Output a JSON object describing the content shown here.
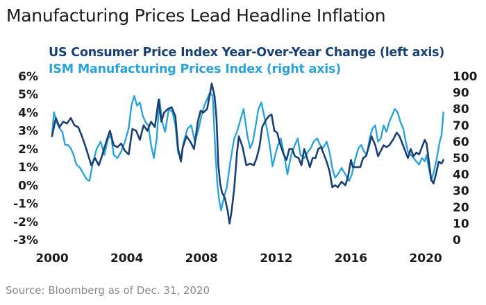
{
  "title": "Manufacturing Prices Lead Headline Inflation",
  "source": "Source: Bloomberg as of Dec. 31, 2020",
  "chart_data": {
    "type": "line",
    "title": "Manufacturing Prices Lead Headline Inflation",
    "grid": false,
    "xlim": [
      2000,
      2021
    ],
    "x_ticks": [
      "2000",
      "2004",
      "2008",
      "2012",
      "2016",
      "2020"
    ],
    "left_axis": {
      "ylim": [
        -3,
        6
      ],
      "ticks": [
        "6%",
        "5%",
        "4%",
        "3%",
        "2%",
        "1%",
        "0%",
        "-1%",
        "-2%",
        "-3%"
      ]
    },
    "right_axis": {
      "ylim": [
        0,
        100
      ],
      "ticks": [
        "100",
        "90",
        "80",
        "70",
        "60",
        "50",
        "40",
        "30",
        "20",
        "10",
        "0"
      ]
    },
    "series": [
      {
        "name": "US Consumer Price Index Year-Over-Year Change (left axis)",
        "axis": "left",
        "color": "#1a3f73",
        "points": [
          [
            2000.0,
            2.7
          ],
          [
            2000.2,
            3.7
          ],
          [
            2000.4,
            3.2
          ],
          [
            2000.6,
            3.5
          ],
          [
            2000.8,
            3.4
          ],
          [
            2001.0,
            3.7
          ],
          [
            2001.2,
            3.3
          ],
          [
            2001.4,
            3.2
          ],
          [
            2001.6,
            2.7
          ],
          [
            2001.8,
            2.1
          ],
          [
            2001.95,
            1.6
          ],
          [
            2002.1,
            1.1
          ],
          [
            2002.3,
            1.5
          ],
          [
            2002.5,
            1.1
          ],
          [
            2002.7,
            1.7
          ],
          [
            2002.9,
            2.4
          ],
          [
            2003.1,
            3.0
          ],
          [
            2003.3,
            2.2
          ],
          [
            2003.5,
            2.1
          ],
          [
            2003.7,
            2.3
          ],
          [
            2003.9,
            1.9
          ],
          [
            2004.1,
            1.7
          ],
          [
            2004.3,
            3.1
          ],
          [
            2004.5,
            3.0
          ],
          [
            2004.7,
            2.5
          ],
          [
            2004.9,
            3.3
          ],
          [
            2005.1,
            3.0
          ],
          [
            2005.3,
            3.5
          ],
          [
            2005.5,
            3.2
          ],
          [
            2005.7,
            4.7
          ],
          [
            2005.85,
            3.5
          ],
          [
            2006.0,
            4.0
          ],
          [
            2006.2,
            4.2
          ],
          [
            2006.4,
            4.3
          ],
          [
            2006.6,
            3.8
          ],
          [
            2006.75,
            2.0
          ],
          [
            2006.9,
            1.3
          ],
          [
            2007.0,
            2.1
          ],
          [
            2007.2,
            2.7
          ],
          [
            2007.4,
            2.4
          ],
          [
            2007.6,
            2.0
          ],
          [
            2007.8,
            3.5
          ],
          [
            2007.95,
            4.1
          ],
          [
            2008.1,
            4.0
          ],
          [
            2008.3,
            4.2
          ],
          [
            2008.45,
            5.0
          ],
          [
            2008.55,
            5.6
          ],
          [
            2008.7,
            4.9
          ],
          [
            2008.8,
            3.7
          ],
          [
            2008.9,
            1.1
          ],
          [
            2009.0,
            0.1
          ],
          [
            2009.1,
            -0.4
          ],
          [
            2009.25,
            -0.7
          ],
          [
            2009.4,
            -1.4
          ],
          [
            2009.5,
            -2.1
          ],
          [
            2009.6,
            -1.5
          ],
          [
            2009.75,
            -0.2
          ],
          [
            2009.9,
            1.8
          ],
          [
            2010.0,
            2.7
          ],
          [
            2010.2,
            2.1
          ],
          [
            2010.4,
            1.1
          ],
          [
            2010.6,
            1.2
          ],
          [
            2010.8,
            1.1
          ],
          [
            2010.95,
            1.5
          ],
          [
            2011.1,
            2.1
          ],
          [
            2011.25,
            3.2
          ],
          [
            2011.45,
            3.6
          ],
          [
            2011.6,
            3.8
          ],
          [
            2011.75,
            3.9
          ],
          [
            2011.9,
            3.0
          ],
          [
            2012.05,
            2.9
          ],
          [
            2012.2,
            2.3
          ],
          [
            2012.4,
            1.7
          ],
          [
            2012.55,
            1.4
          ],
          [
            2012.7,
            2.0
          ],
          [
            2012.85,
            2.0
          ],
          [
            2013.0,
            1.6
          ],
          [
            2013.2,
            1.5
          ],
          [
            2013.35,
            1.1
          ],
          [
            2013.5,
            2.0
          ],
          [
            2013.65,
            1.5
          ],
          [
            2013.8,
            1.0
          ],
          [
            2013.95,
            1.5
          ],
          [
            2014.1,
            1.5
          ],
          [
            2014.25,
            2.0
          ],
          [
            2014.4,
            2.1
          ],
          [
            2014.55,
            1.7
          ],
          [
            2014.7,
            1.3
          ],
          [
            2014.85,
            0.8
          ],
          [
            2015.0,
            -0.1
          ],
          [
            2015.15,
            0.0
          ],
          [
            2015.3,
            -0.1
          ],
          [
            2015.5,
            0.2
          ],
          [
            2015.7,
            0.0
          ],
          [
            2015.85,
            0.5
          ],
          [
            2016.0,
            1.4
          ],
          [
            2016.1,
            1.0
          ],
          [
            2016.3,
            1.0
          ],
          [
            2016.5,
            1.0
          ],
          [
            2016.65,
            1.5
          ],
          [
            2016.8,
            1.6
          ],
          [
            2016.95,
            2.1
          ],
          [
            2017.1,
            2.7
          ],
          [
            2017.3,
            2.2
          ],
          [
            2017.45,
            1.6
          ],
          [
            2017.6,
            1.9
          ],
          [
            2017.75,
            2.2
          ],
          [
            2017.9,
            2.1
          ],
          [
            2018.05,
            2.2
          ],
          [
            2018.25,
            2.5
          ],
          [
            2018.45,
            2.9
          ],
          [
            2018.6,
            2.7
          ],
          [
            2018.75,
            2.3
          ],
          [
            2018.9,
            1.9
          ],
          [
            2019.05,
            1.5
          ],
          [
            2019.2,
            2.0
          ],
          [
            2019.35,
            1.6
          ],
          [
            2019.5,
            1.8
          ],
          [
            2019.65,
            1.7
          ],
          [
            2019.8,
            2.1
          ],
          [
            2019.95,
            2.5
          ],
          [
            2020.05,
            2.3
          ],
          [
            2020.15,
            1.5
          ],
          [
            2020.3,
            0.3
          ],
          [
            2020.42,
            0.1
          ],
          [
            2020.55,
            0.6
          ],
          [
            2020.7,
            1.3
          ],
          [
            2020.85,
            1.2
          ],
          [
            2020.95,
            1.4
          ]
        ]
      },
      {
        "name": "ISM Manufacturing Prices Index (right axis)",
        "axis": "right",
        "color": "#2ba3d8",
        "points": [
          [
            2000.0,
            64
          ],
          [
            2000.1,
            78
          ],
          [
            2000.25,
            72
          ],
          [
            2000.4,
            68
          ],
          [
            2000.55,
            66
          ],
          [
            2000.7,
            58
          ],
          [
            2000.85,
            58
          ],
          [
            2001.0,
            56
          ],
          [
            2001.15,
            52
          ],
          [
            2001.3,
            46
          ],
          [
            2001.5,
            44
          ],
          [
            2001.7,
            40
          ],
          [
            2001.85,
            37
          ],
          [
            2002.0,
            36
          ],
          [
            2002.2,
            48
          ],
          [
            2002.4,
            56
          ],
          [
            2002.6,
            60
          ],
          [
            2002.8,
            52
          ],
          [
            2003.0,
            62
          ],
          [
            2003.15,
            64
          ],
          [
            2003.3,
            52
          ],
          [
            2003.5,
            50
          ],
          [
            2003.7,
            54
          ],
          [
            2003.9,
            60
          ],
          [
            2004.1,
            68
          ],
          [
            2004.25,
            82
          ],
          [
            2004.4,
            88
          ],
          [
            2004.55,
            82
          ],
          [
            2004.7,
            84
          ],
          [
            2004.85,
            76
          ],
          [
            2005.0,
            72
          ],
          [
            2005.15,
            70
          ],
          [
            2005.3,
            58
          ],
          [
            2005.45,
            50
          ],
          [
            2005.6,
            62
          ],
          [
            2005.75,
            86
          ],
          [
            2005.9,
            72
          ],
          [
            2006.05,
            66
          ],
          [
            2006.25,
            80
          ],
          [
            2006.45,
            78
          ],
          [
            2006.6,
            70
          ],
          [
            2006.75,
            53
          ],
          [
            2006.9,
            50
          ],
          [
            2007.05,
            60
          ],
          [
            2007.25,
            68
          ],
          [
            2007.45,
            70
          ],
          [
            2007.65,
            60
          ],
          [
            2007.85,
            68
          ],
          [
            2008.0,
            76
          ],
          [
            2008.15,
            82
          ],
          [
            2008.3,
            86
          ],
          [
            2008.45,
            90
          ],
          [
            2008.6,
            88
          ],
          [
            2008.75,
            52
          ],
          [
            2008.85,
            34
          ],
          [
            2008.95,
            24
          ],
          [
            2009.05,
            18
          ],
          [
            2009.2,
            26
          ],
          [
            2009.35,
            32
          ],
          [
            2009.55,
            48
          ],
          [
            2009.75,
            62
          ],
          [
            2009.9,
            66
          ],
          [
            2010.05,
            72
          ],
          [
            2010.25,
            80
          ],
          [
            2010.45,
            64
          ],
          [
            2010.6,
            56
          ],
          [
            2010.75,
            60
          ],
          [
            2010.9,
            70
          ],
          [
            2011.05,
            80
          ],
          [
            2011.2,
            84
          ],
          [
            2011.35,
            76
          ],
          [
            2011.5,
            68
          ],
          [
            2011.65,
            58
          ],
          [
            2011.8,
            45
          ],
          [
            2011.95,
            52
          ],
          [
            2012.1,
            58
          ],
          [
            2012.25,
            62
          ],
          [
            2012.45,
            50
          ],
          [
            2012.6,
            40
          ],
          [
            2012.8,
            52
          ],
          [
            2013.0,
            58
          ],
          [
            2013.15,
            62
          ],
          [
            2013.3,
            52
          ],
          [
            2013.5,
            50
          ],
          [
            2013.7,
            54
          ],
          [
            2013.85,
            56
          ],
          [
            2014.0,
            60
          ],
          [
            2014.2,
            62
          ],
          [
            2014.35,
            58
          ],
          [
            2014.5,
            56
          ],
          [
            2014.7,
            60
          ],
          [
            2014.85,
            54
          ],
          [
            2015.0,
            44
          ],
          [
            2015.15,
            38
          ],
          [
            2015.3,
            40
          ],
          [
            2015.5,
            44
          ],
          [
            2015.7,
            40
          ],
          [
            2015.9,
            36
          ],
          [
            2016.05,
            40
          ],
          [
            2016.2,
            48
          ],
          [
            2016.4,
            56
          ],
          [
            2016.55,
            58
          ],
          [
            2016.7,
            54
          ],
          [
            2016.85,
            52
          ],
          [
            2017.0,
            62
          ],
          [
            2017.15,
            68
          ],
          [
            2017.3,
            70
          ],
          [
            2017.45,
            60
          ],
          [
            2017.6,
            62
          ],
          [
            2017.75,
            70
          ],
          [
            2017.9,
            66
          ],
          [
            2018.05,
            72
          ],
          [
            2018.2,
            76
          ],
          [
            2018.35,
            80
          ],
          [
            2018.5,
            78
          ],
          [
            2018.65,
            72
          ],
          [
            2018.8,
            68
          ],
          [
            2018.9,
            62
          ],
          [
            2019.05,
            54
          ],
          [
            2019.2,
            52
          ],
          [
            2019.35,
            50
          ],
          [
            2019.5,
            48
          ],
          [
            2019.65,
            46
          ],
          [
            2019.8,
            50
          ],
          [
            2019.95,
            48
          ],
          [
            2020.05,
            52
          ],
          [
            2020.15,
            45
          ],
          [
            2020.3,
            36
          ],
          [
            2020.45,
            42
          ],
          [
            2020.6,
            50
          ],
          [
            2020.75,
            60
          ],
          [
            2020.85,
            64
          ],
          [
            2020.95,
            78
          ]
        ]
      }
    ]
  }
}
